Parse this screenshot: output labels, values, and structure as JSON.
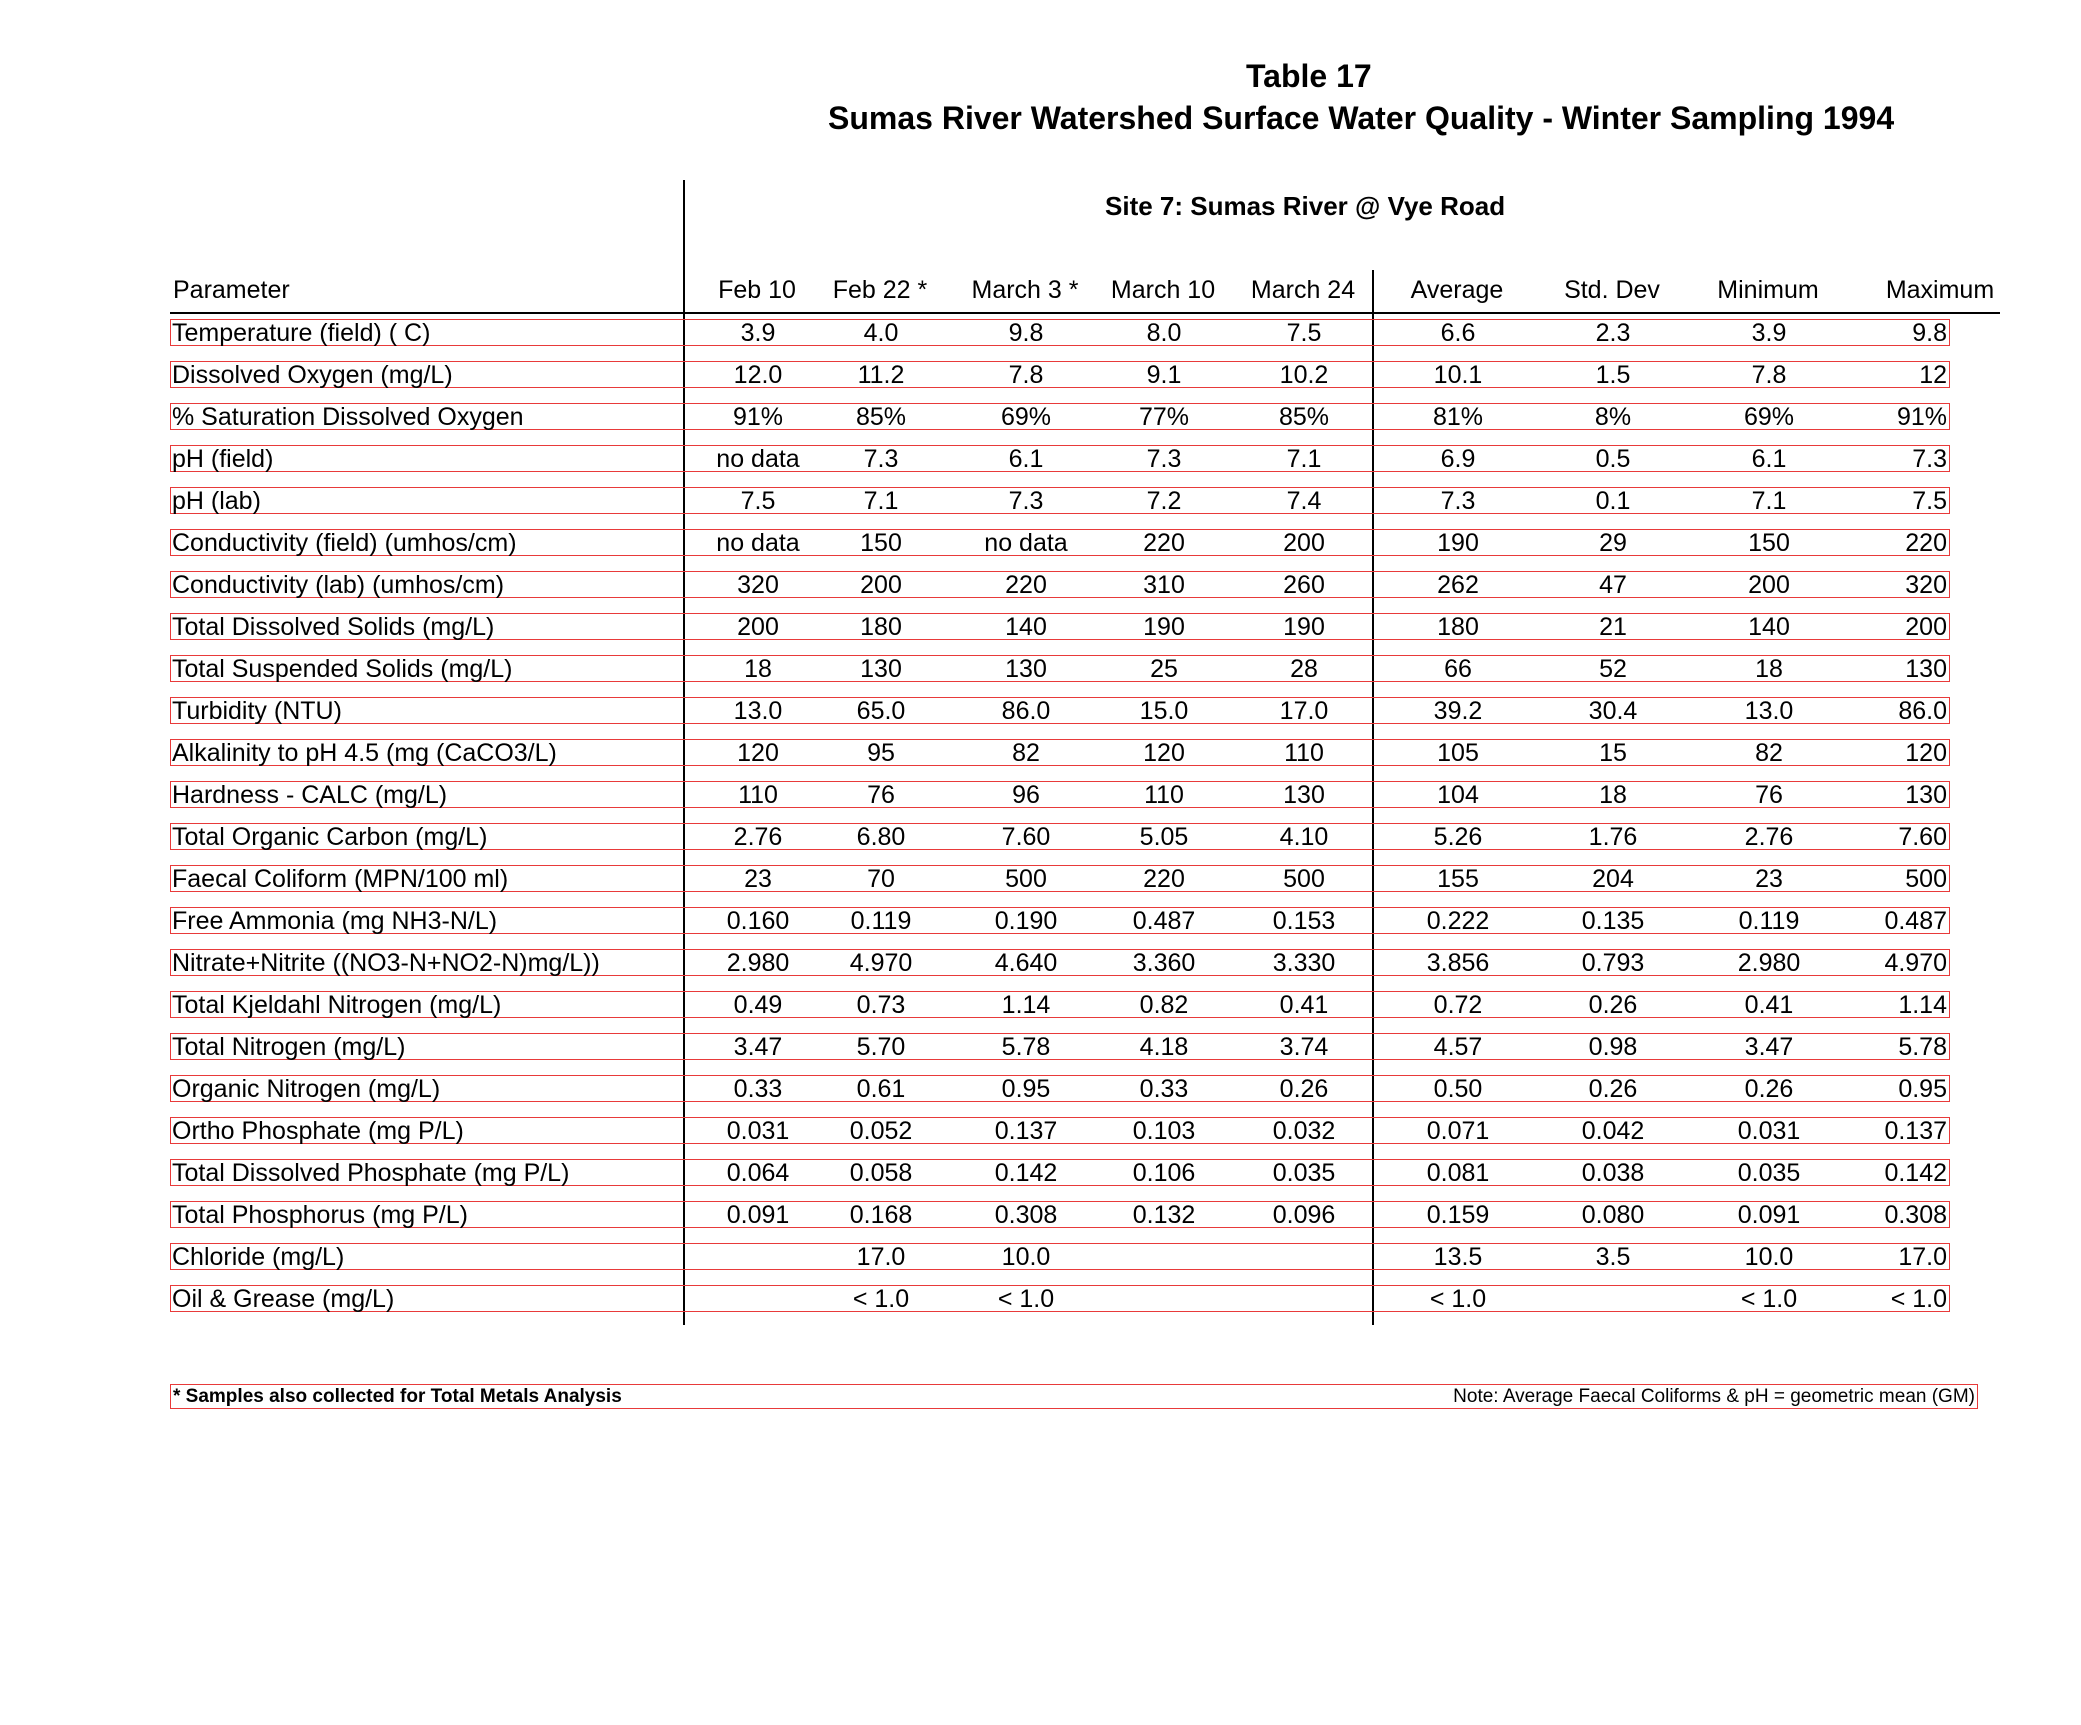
{
  "title": "Table 17",
  "subtitle": "Sumas River Watershed Surface Water Quality -  Winter Sampling 1994",
  "site_title": "Site 7: Sumas River @ Vye Road",
  "headers": [
    "Parameter",
    "Feb 10",
    "Feb 22 *",
    "March 3 *",
    "March 10",
    "March 24",
    "Average",
    "Std. Dev",
    "Minimum",
    "Maximum"
  ],
  "rows": [
    [
      "Temperature (field) ( C)",
      "3.9",
      "4.0",
      "9.8",
      "8.0",
      "7.5",
      "6.6",
      "2.3",
      "3.9",
      "9.8"
    ],
    [
      "Dissolved Oxygen (mg/L)",
      "12.0",
      "11.2",
      "7.8",
      "9.1",
      "10.2",
      "10.1",
      "1.5",
      "7.8",
      "12"
    ],
    [
      "% Saturation Dissolved Oxygen",
      "91%",
      "85%",
      "69%",
      "77%",
      "85%",
      "81%",
      "8%",
      "69%",
      "91%"
    ],
    [
      "pH (field)",
      "no data",
      "7.3",
      "6.1",
      "7.3",
      "7.1",
      "6.9",
      "0.5",
      "6.1",
      "7.3"
    ],
    [
      "pH (lab)",
      "7.5",
      "7.1",
      "7.3",
      "7.2",
      "7.4",
      "7.3",
      "0.1",
      "7.1",
      "7.5"
    ],
    [
      "Conductivity (field) (umhos/cm)",
      "no data",
      "150",
      "no data",
      "220",
      "200",
      "190",
      "29",
      "150",
      "220"
    ],
    [
      "Conductivity (lab) (umhos/cm)",
      "320",
      "200",
      "220",
      "310",
      "260",
      "262",
      "47",
      "200",
      "320"
    ],
    [
      "Total Dissolved Solids (mg/L)",
      "200",
      "180",
      "140",
      "190",
      "190",
      "180",
      "21",
      "140",
      "200"
    ],
    [
      "Total Suspended Solids (mg/L)",
      "18",
      "130",
      "130",
      "25",
      "28",
      "66",
      "52",
      "18",
      "130"
    ],
    [
      "Turbidity (NTU)",
      "13.0",
      "65.0",
      "86.0",
      "15.0",
      "17.0",
      "39.2",
      "30.4",
      "13.0",
      "86.0"
    ],
    [
      "Alkalinity to pH 4.5 (mg (CaCO3/L)",
      "120",
      "95",
      "82",
      "120",
      "110",
      "105",
      "15",
      "82",
      "120"
    ],
    [
      "Hardness - CALC (mg/L)",
      "110",
      "76",
      "96",
      "110",
      "130",
      "104",
      "18",
      "76",
      "130"
    ],
    [
      "Total Organic Carbon (mg/L)",
      "2.76",
      "6.80",
      "7.60",
      "5.05",
      "4.10",
      "5.26",
      "1.76",
      "2.76",
      "7.60"
    ],
    [
      "Faecal Coliform (MPN/100 ml)",
      "23",
      "70",
      "500",
      "220",
      "500",
      "155",
      "204",
      "23",
      "500"
    ],
    [
      "Free Ammonia (mg NH3-N/L)",
      "0.160",
      "0.119",
      "0.190",
      "0.487",
      "0.153",
      "0.222",
      "0.135",
      "0.119",
      "0.487"
    ],
    [
      "Nitrate+Nitrite ((NO3-N+NO2-N)mg/L))",
      "2.980",
      "4.970",
      "4.640",
      "3.360",
      "3.330",
      "3.856",
      "0.793",
      "2.980",
      "4.970"
    ],
    [
      "Total Kjeldahl Nitrogen (mg/L)",
      "0.49",
      "0.73",
      "1.14",
      "0.82",
      "0.41",
      "0.72",
      "0.26",
      "0.41",
      "1.14"
    ],
    [
      "Total Nitrogen (mg/L)",
      "3.47",
      "5.70",
      "5.78",
      "4.18",
      "3.74",
      "4.57",
      "0.98",
      "3.47",
      "5.78"
    ],
    [
      "Organic Nitrogen (mg/L)",
      "0.33",
      "0.61",
      "0.95",
      "0.33",
      "0.26",
      "0.50",
      "0.26",
      "0.26",
      "0.95"
    ],
    [
      "Ortho Phosphate (mg P/L)",
      "0.031",
      "0.052",
      "0.137",
      "0.103",
      "0.032",
      "0.071",
      "0.042",
      "0.031",
      "0.137"
    ],
    [
      "Total Dissolved Phosphate (mg P/L)",
      "0.064",
      "0.058",
      "0.142",
      "0.106",
      "0.035",
      "0.081",
      "0.038",
      "0.035",
      "0.142"
    ],
    [
      "Total Phosphorus (mg P/L)",
      "0.091",
      "0.168",
      "0.308",
      "0.132",
      "0.096",
      "0.159",
      "0.080",
      "0.091",
      "0.308"
    ],
    [
      "Chloride (mg/L)",
      "",
      "17.0",
      "10.0",
      "",
      "",
      "13.5",
      "3.5",
      "10.0",
      "17.0"
    ],
    [
      "Oil & Grease (mg/L)",
      "",
      "< 1.0",
      "< 1.0",
      "",
      "",
      "< 1.0",
      "",
      "< 1.0",
      "< 1.0"
    ]
  ],
  "footnote": "* Samples also collected for Total Metals Analysis",
  "note": "Note: Average Faecal Coliforms & pH = geometric mean (GM)"
}
